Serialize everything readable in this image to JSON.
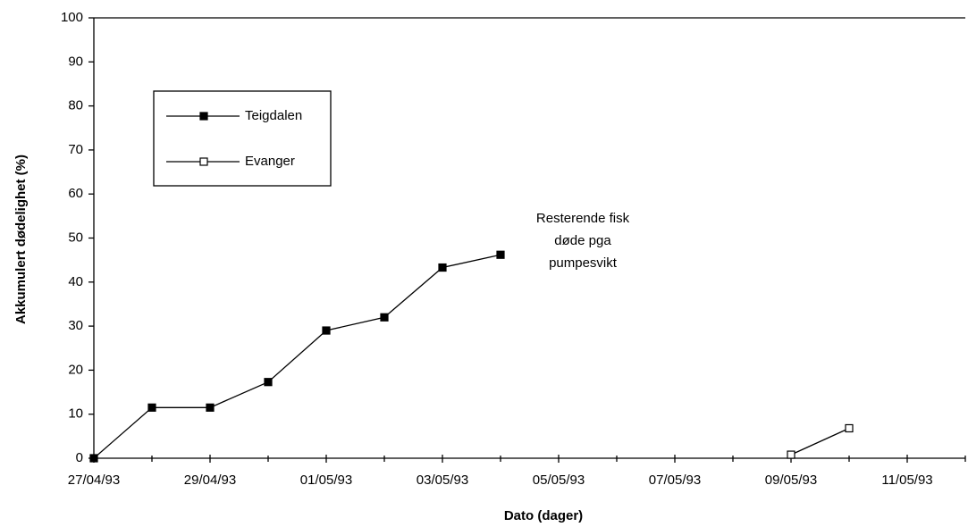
{
  "chart_data": {
    "type": "line",
    "xlabel": "Dato (dager)",
    "ylabel": "Akkumulert dødelighet (%)",
    "xlim": [
      "1993-04-27",
      "1993-05-12"
    ],
    "xticks": [
      {
        "value": "1993-04-27",
        "label": "27/04/93"
      },
      {
        "value": "1993-04-29",
        "label": "29/04/93"
      },
      {
        "value": "1993-05-01",
        "label": "01/05/93"
      },
      {
        "value": "1993-05-03",
        "label": "03/05/93"
      },
      {
        "value": "1993-05-05",
        "label": "05/05/93"
      },
      {
        "value": "1993-05-07",
        "label": "07/05/93"
      },
      {
        "value": "1993-05-09",
        "label": "09/05/93"
      },
      {
        "value": "1993-05-11",
        "label": "11/05/93"
      }
    ],
    "xminorticks": [
      "1993-04-28",
      "1993-04-30",
      "1993-05-02",
      "1993-05-04",
      "1993-05-06",
      "1993-05-08",
      "1993-05-10",
      "1993-05-12"
    ],
    "ylim": [
      0,
      100
    ],
    "yticks": [
      0,
      10,
      20,
      30,
      40,
      50,
      60,
      70,
      80,
      90,
      100
    ],
    "grid": false,
    "legend": "upper left",
    "series": [
      {
        "name": "Teigdalen",
        "color": "#000000",
        "marker": "filled-square",
        "x": [
          "1993-04-27",
          "1993-04-28",
          "1993-04-29",
          "1993-04-30",
          "1993-05-01",
          "1993-05-02",
          "1993-05-03",
          "1993-05-04"
        ],
        "values": [
          0,
          11.5,
          11.5,
          17.3,
          29,
          32,
          43.3,
          46.2
        ]
      },
      {
        "name": "Evanger",
        "color": "#000000",
        "marker": "open-square",
        "x": [
          "1993-05-09",
          "1993-05-10"
        ],
        "values": [
          0.8,
          6.8
        ]
      }
    ],
    "annotation": [
      "Resterende fisk",
      "døde pga",
      "pumpesvikt"
    ]
  }
}
